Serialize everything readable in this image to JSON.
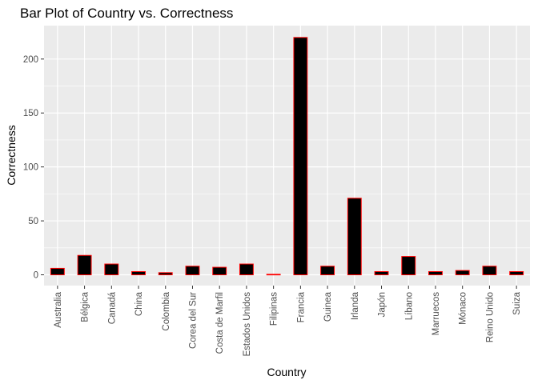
{
  "chart_data": {
    "type": "bar",
    "title": "Bar Plot of Country vs. Correctness",
    "xlabel": "Country",
    "ylabel": "Correctness",
    "categories": [
      "Australia",
      "Bélgica",
      "Canadá",
      "China",
      "Colombia",
      "Corea del Sur",
      "Costa de Marfil",
      "Estados Unidos",
      "Filipinas",
      "Francia",
      "Guinea",
      "Irlanda",
      "Japón",
      "Líbano",
      "Marruecos",
      "Mónaco",
      "Reino Unido",
      "Suiza"
    ],
    "values": [
      6,
      18,
      10,
      3,
      2,
      8,
      7,
      10,
      0.5,
      220,
      8,
      71,
      3,
      17,
      3,
      4,
      8,
      3
    ],
    "ylim": [
      -10,
      231
    ],
    "yticks": [
      0,
      50,
      100,
      150,
      200
    ],
    "grid": true,
    "colors": {
      "panel_background": "#EBEBEB",
      "grid": "#FFFFFF",
      "bar_fill": "#000000",
      "bar_outline": "#FF0000"
    }
  }
}
